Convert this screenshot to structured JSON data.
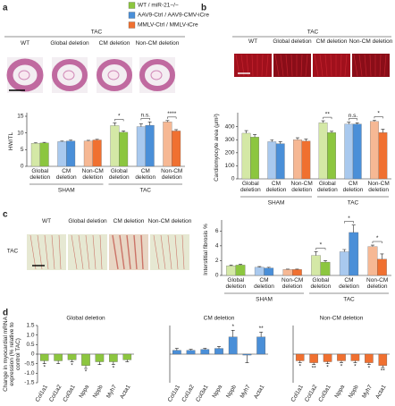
{
  "panels": {
    "a": {
      "letter": "a",
      "header": "TAC",
      "images": [
        "WT",
        "Global deletion",
        "CM deletion",
        "Non-CM deletion"
      ]
    },
    "b": {
      "letter": "b",
      "header": "TAC",
      "images": [
        "WT",
        "Global deletion",
        "CM deletion",
        "Non-CM deletion"
      ]
    },
    "c": {
      "letter": "c",
      "side_label": "TAC",
      "images": [
        "WT",
        "Global deletion",
        "CM deletion",
        "Non-CM deletion"
      ]
    },
    "d": {
      "letter": "d"
    }
  },
  "legend": [
    {
      "label": "WT / miR-21−/−",
      "color": "#8cc63f"
    },
    {
      "label": "AAV9-Ctrl / AAV9-CMV-iCre",
      "color": "#4a8fd8"
    },
    {
      "label": "MMLV-Ctrl / MMLV-iCre",
      "color": "#f07030"
    }
  ],
  "chart_data": [
    {
      "type": "paired-bar",
      "ylabel": "HW/TL",
      "ylim": [
        0,
        15
      ],
      "yticks": [
        0,
        5,
        10,
        15
      ],
      "sections": [
        {
          "label": "SHAM",
          "groups": [
            {
              "label": "Global deletion",
              "values": [
                6.9,
                7.0
              ],
              "errors": [
                0.2,
                0.2
              ],
              "colors": [
                "#d4e8a6",
                "#8cc63f"
              ]
            },
            {
              "label": "CM deletion",
              "values": [
                7.4,
                7.6
              ],
              "errors": [
                0.2,
                0.3
              ],
              "colors": [
                "#a9c9ee",
                "#4a8fd8"
              ]
            },
            {
              "label": "Non-CM deletion",
              "values": [
                7.6,
                7.9
              ],
              "errors": [
                0.2,
                0.2
              ],
              "colors": [
                "#f6b894",
                "#f07030"
              ]
            }
          ]
        },
        {
          "label": "TAC",
          "groups": [
            {
              "label": "Global deletion",
              "values": [
                12.2,
                10.2
              ],
              "errors": [
                0.8,
                0.4
              ],
              "colors": [
                "#d4e8a6",
                "#8cc63f"
              ],
              "significance": "*"
            },
            {
              "label": "CM deletion",
              "values": [
                11.9,
                12.3
              ],
              "errors": [
                0.8,
                1.0
              ],
              "colors": [
                "#a9c9ee",
                "#4a8fd8"
              ],
              "significance": "n.s."
            },
            {
              "label": "Non-CM deletion",
              "values": [
                13.3,
                10.6
              ],
              "errors": [
                0.4,
                0.4
              ],
              "colors": [
                "#f6b894",
                "#f07030"
              ],
              "significance": "****"
            }
          ]
        }
      ]
    },
    {
      "type": "paired-bar",
      "ylabel": "Cardiomyocyte area (μm²)",
      "ylim": [
        0,
        480
      ],
      "yticks": [
        0,
        100,
        200,
        300,
        400
      ],
      "sections": [
        {
          "label": "SHAM",
          "groups": [
            {
              "label": "Global deletion",
              "values": [
                350,
                320
              ],
              "errors": [
                20,
                20
              ],
              "colors": [
                "#d4e8a6",
                "#8cc63f"
              ]
            },
            {
              "label": "CM deletion",
              "values": [
                285,
                270
              ],
              "errors": [
                15,
                15
              ],
              "colors": [
                "#a9c9ee",
                "#4a8fd8"
              ]
            },
            {
              "label": "Non-CM deletion",
              "values": [
                300,
                290
              ],
              "errors": [
                15,
                15
              ],
              "colors": [
                "#f6b894",
                "#f07030"
              ]
            }
          ]
        },
        {
          "label": "TAC",
          "groups": [
            {
              "label": "Global deletion",
              "values": [
                430,
                355
              ],
              "errors": [
                15,
                10
              ],
              "colors": [
                "#d4e8a6",
                "#8cc63f"
              ],
              "significance": "**"
            },
            {
              "label": "CM deletion",
              "values": [
                420,
                420
              ],
              "errors": [
                15,
                10
              ],
              "colors": [
                "#a9c9ee",
                "#4a8fd8"
              ],
              "significance": "n.s."
            },
            {
              "label": "Non-CM deletion",
              "values": [
                440,
                355
              ],
              "errors": [
                10,
                25
              ],
              "colors": [
                "#f6b894",
                "#f07030"
              ],
              "significance": "*"
            }
          ]
        }
      ]
    },
    {
      "type": "paired-bar",
      "ylabel": "Interstitial fibrosis %",
      "ylim": [
        0,
        7
      ],
      "yticks": [
        0,
        2,
        4,
        6
      ],
      "sections": [
        {
          "label": "SHAM",
          "groups": [
            {
              "label": "Global deletion",
              "values": [
                1.3,
                1.4
              ],
              "errors": [
                0.1,
                0.1
              ],
              "colors": [
                "#d4e8a6",
                "#8cc63f"
              ]
            },
            {
              "label": "CM deletion",
              "values": [
                1.1,
                1.0
              ],
              "errors": [
                0.1,
                0.1
              ],
              "colors": [
                "#a9c9ee",
                "#4a8fd8"
              ]
            },
            {
              "label": "Non-CM deletion",
              "values": [
                0.8,
                0.8
              ],
              "errors": [
                0.05,
                0.05
              ],
              "colors": [
                "#f6b894",
                "#f07030"
              ]
            }
          ]
        },
        {
          "label": "TAC",
          "groups": [
            {
              "label": "Global deletion",
              "values": [
                2.7,
                1.8
              ],
              "errors": [
                0.5,
                0.2
              ],
              "colors": [
                "#d4e8a6",
                "#8cc63f"
              ],
              "significance": "*"
            },
            {
              "label": "CM deletion",
              "values": [
                3.2,
                5.8
              ],
              "errors": [
                0.3,
                1.0
              ],
              "colors": [
                "#a9c9ee",
                "#4a8fd8"
              ],
              "significance": "*"
            },
            {
              "label": "Non-CM deletion",
              "values": [
                3.9,
                2.2
              ],
              "errors": [
                0.2,
                0.7
              ],
              "colors": [
                "#f6b894",
                "#f07030"
              ],
              "significance": "*"
            }
          ]
        }
      ]
    },
    {
      "type": "bar",
      "title": "Global deletion",
      "ylabel": "Change in myocardial mRNA expression (% relative to control TAC)",
      "categories": [
        "Col1a1",
        "Col1a2",
        "Col3a1",
        "Nppa",
        "Nppb",
        "Myh7",
        "Acta1"
      ],
      "values": [
        -0.35,
        -0.35,
        -0.3,
        -0.6,
        -0.4,
        -0.4,
        -0.3
      ],
      "errors": [
        0.15,
        0.15,
        0.1,
        0.15,
        0.15,
        0.15,
        0.1
      ],
      "significance": [
        "*",
        null,
        "*",
        "*",
        null,
        "*",
        null
      ],
      "color": "#8cc63f",
      "ylim": [
        -1.5,
        1.5
      ],
      "yticks": [
        1.5,
        {
          "value": 1,
          "label": "1.0"
        },
        0.5,
        0,
        -0.5,
        {
          "value": -1,
          "label": "-1.0"
        },
        -1.5
      ]
    },
    {
      "type": "bar",
      "title": "CM deletion",
      "categories": [
        "Col1a1",
        "Col1a2",
        "Col3a1",
        "Nppa",
        "Nppb",
        "Myh7",
        "Acta1"
      ],
      "values": [
        0.2,
        0.2,
        0.25,
        0.3,
        0.9,
        -0.05,
        0.9
      ],
      "errors": [
        0.1,
        0.05,
        0.05,
        0.1,
        0.35,
        0.4,
        0.25
      ],
      "significance": [
        null,
        null,
        null,
        null,
        "*",
        null,
        "**"
      ],
      "color": "#4a8fd8",
      "ylim": [
        -1.5,
        1.5
      ]
    },
    {
      "type": "bar",
      "title": "Non-CM deletion",
      "categories": [
        "Col1a1",
        "Col1a2",
        "Col3a1",
        "Nppa",
        "Nppb",
        "Myh7",
        "Acta1"
      ],
      "values": [
        -0.35,
        -0.45,
        -0.4,
        -0.35,
        -0.35,
        -0.45,
        -0.6
      ],
      "errors": [
        0.1,
        0.1,
        0.1,
        0.1,
        0.1,
        0.1,
        0.1
      ],
      "significance": [
        "*",
        "**",
        "*",
        "*",
        "*",
        "*",
        "**"
      ],
      "color": "#f07030",
      "ylim": [
        -1.5,
        1.5
      ]
    }
  ]
}
